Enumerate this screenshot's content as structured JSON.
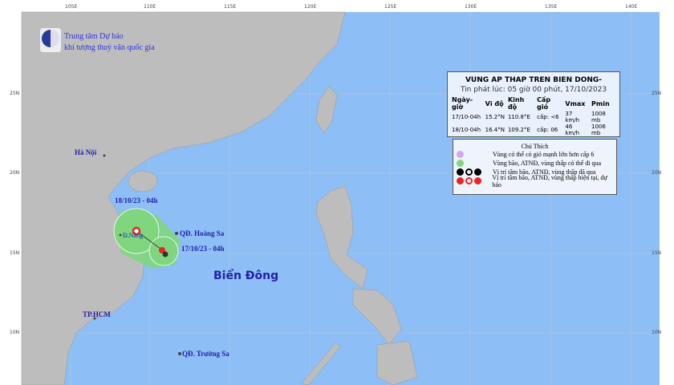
{
  "header": {
    "org_line1": "Trung tâm Dự báo",
    "org_line2": "khí tượng thuỷ văn quốc gia"
  },
  "axes": {
    "lon_labels": [
      "105E",
      "110E",
      "115E",
      "120E",
      "125E",
      "130E",
      "135E",
      "140E"
    ],
    "lat_labels": [
      "25N",
      "20N",
      "15N",
      "10N"
    ]
  },
  "bulletin": {
    "title": "VUNG AP THAP TREN BIEN DONG-",
    "issued": "Tin phát lúc: 05 giờ 00 phút, 17/10/2023",
    "columns": [
      "Ngày-giờ",
      "Vĩ độ",
      "Kinh độ",
      "Cấp gió",
      "Vmax",
      "Pmin"
    ],
    "rows": [
      [
        "17/10-04h",
        "15.2°N",
        "110.8°E",
        "cấp: <6",
        "37 km/h",
        "1008 mb"
      ],
      [
        "18/10-04h",
        "16.4°N",
        "109.2°E",
        "cấp: 06",
        "46 km/h",
        "1006 mb"
      ]
    ]
  },
  "legend": {
    "title": "Chú Thích",
    "items": [
      {
        "label": "Vùng có thể có gió mạnh lớn hơn cấp 6",
        "color": "#d9a6ee"
      },
      {
        "label": "Vùng bão, ATNĐ, vùng thấp có thể đi qua",
        "color": "#7fd67f"
      },
      {
        "label": "Vị trí tâm bão, ATNĐ, vùng thấp đã qua",
        "color": "#000000"
      },
      {
        "label": "Vị trí tâm bão, ATNĐ, vùng thấp hiện tại, dự báo",
        "color": "#ee2222"
      }
    ]
  },
  "places": {
    "hanoi": "Hà Nội",
    "danang": "Đ.Nẵng",
    "hoangsa": "QĐ. Hoàng Sa",
    "truongsa": "QĐ. Trường Sa",
    "hcm": "TP.HCM",
    "biendong": "Biển Đông"
  },
  "track": {
    "time_current": "17/10/23 - 04h",
    "time_forecast": "18/10/23 - 04h"
  },
  "colors": {
    "ocean": "#8dbef5",
    "land": "#bdbdbd",
    "cone": "#7fd67f"
  }
}
